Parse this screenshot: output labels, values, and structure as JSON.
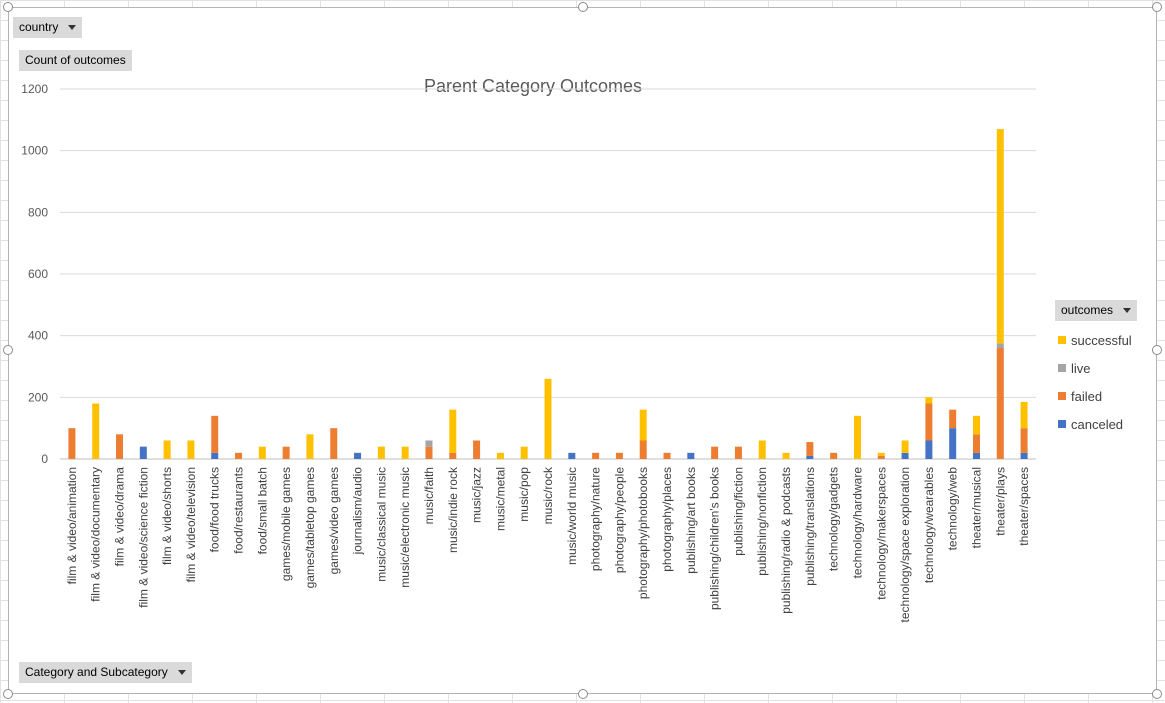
{
  "filters": {
    "country_label": "country",
    "values_label": "Count of outcomes",
    "axis_field_label": "Category and Subcategory",
    "legend_field_label": "outcomes"
  },
  "colors": {
    "successful": "#ffc000",
    "live": "#a5a5a5",
    "failed": "#ed7d31",
    "canceled": "#4472c4",
    "gridline": "#d9d9d9",
    "axis_text": "#595959"
  },
  "icons": {
    "dropdown": "chevron-down-icon"
  },
  "chart_data": {
    "type": "bar",
    "stacked": true,
    "title": "Parent Category Outcomes",
    "xlabel": "",
    "ylabel": "",
    "ylim": [
      0,
      1200
    ],
    "yticks": [
      0,
      200,
      400,
      600,
      800,
      1000,
      1200
    ],
    "grid": true,
    "legend_position": "right",
    "categories": [
      "film & video/animation",
      "film & video/documentary",
      "film & video/drama",
      "film & video/science fiction",
      "film & video/shorts",
      "film & video/television",
      "food/food trucks",
      "food/restaurants",
      "food/small batch",
      "games/mobile games",
      "games/tabletop games",
      "games/video games",
      "journalism/audio",
      "music/classical music",
      "music/electronic music",
      "music/faith",
      "music/indie rock",
      "music/jazz",
      "music/metal",
      "music/pop",
      "music/rock",
      "music/world music",
      "photography/nature",
      "photography/people",
      "photography/photobooks",
      "photography/places",
      "publishing/art books",
      "publishing/children's books",
      "publishing/fiction",
      "publishing/nonfiction",
      "publishing/radio & podcasts",
      "publishing/translations",
      "technology/gadgets",
      "technology/hardware",
      "technology/makerspaces",
      "technology/space exploration",
      "technology/wearables",
      "technology/web",
      "theater/musical",
      "theater/plays",
      "theater/spaces"
    ],
    "series": [
      {
        "name": "canceled",
        "values": [
          0,
          0,
          0,
          40,
          0,
          0,
          20,
          0,
          0,
          0,
          0,
          0,
          20,
          0,
          0,
          0,
          0,
          0,
          0,
          0,
          0,
          20,
          0,
          0,
          0,
          0,
          20,
          0,
          0,
          0,
          0,
          10,
          0,
          0,
          0,
          20,
          60,
          100,
          20,
          0,
          20
        ]
      },
      {
        "name": "failed",
        "values": [
          100,
          0,
          80,
          0,
          0,
          0,
          120,
          20,
          0,
          40,
          0,
          100,
          0,
          0,
          0,
          40,
          20,
          60,
          0,
          0,
          0,
          0,
          20,
          20,
          60,
          20,
          0,
          40,
          40,
          0,
          0,
          45,
          20,
          0,
          10,
          0,
          120,
          60,
          60,
          360,
          80
        ]
      },
      {
        "name": "live",
        "values": [
          0,
          0,
          0,
          0,
          0,
          0,
          0,
          0,
          0,
          0,
          0,
          0,
          0,
          0,
          0,
          20,
          0,
          0,
          0,
          0,
          0,
          0,
          0,
          0,
          0,
          0,
          0,
          0,
          0,
          0,
          0,
          0,
          0,
          0,
          0,
          0,
          0,
          0,
          0,
          15,
          0
        ]
      },
      {
        "name": "successful",
        "values": [
          0,
          180,
          0,
          0,
          60,
          60,
          0,
          0,
          40,
          0,
          80,
          0,
          0,
          40,
          40,
          0,
          140,
          0,
          20,
          40,
          260,
          0,
          0,
          0,
          100,
          0,
          0,
          0,
          0,
          60,
          20,
          0,
          0,
          140,
          10,
          40,
          20,
          0,
          60,
          695,
          85
        ]
      }
    ]
  }
}
